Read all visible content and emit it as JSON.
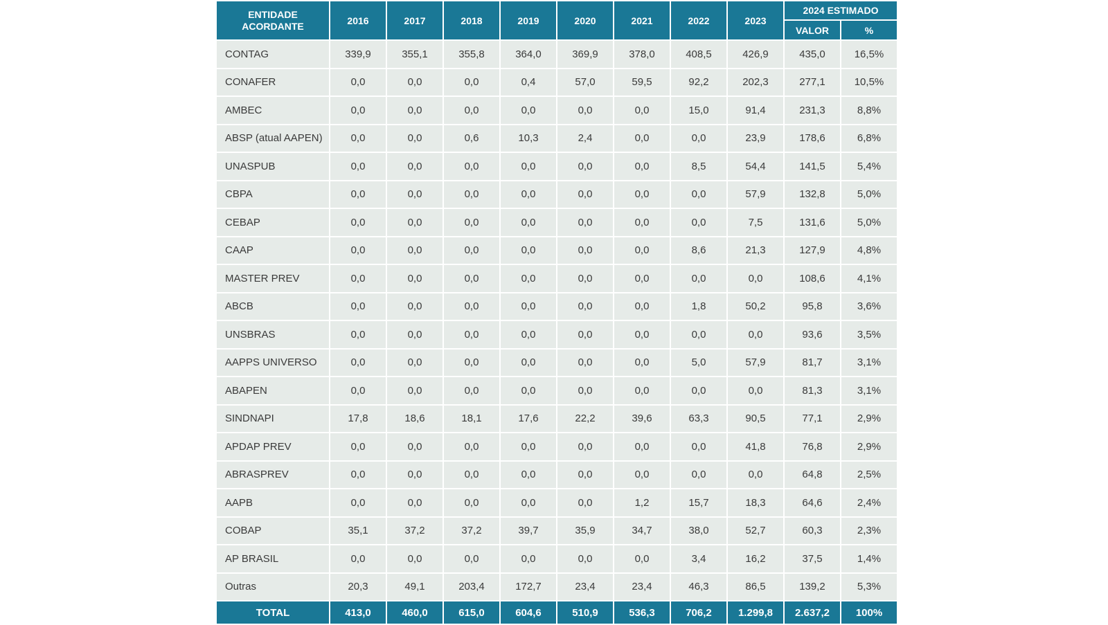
{
  "header": {
    "entity_line1": "ENTIDADE",
    "entity_line2": "ACORDANTE",
    "years": [
      "2016",
      "2017",
      "2018",
      "2019",
      "2020",
      "2021",
      "2022",
      "2023"
    ],
    "estimate_group": "2024 ESTIMADO",
    "estimate_value": "VALOR",
    "estimate_pct": "%"
  },
  "rows": [
    {
      "name": "CONTAG",
      "values": [
        "339,9",
        "355,1",
        "355,8",
        "364,0",
        "369,9",
        "378,0",
        "408,5",
        "426,9",
        "435,0",
        "16,5%"
      ]
    },
    {
      "name": "CONAFER",
      "values": [
        "0,0",
        "0,0",
        "0,0",
        "0,4",
        "57,0",
        "59,5",
        "92,2",
        "202,3",
        "277,1",
        "10,5%"
      ]
    },
    {
      "name": "AMBEC",
      "values": [
        "0,0",
        "0,0",
        "0,0",
        "0,0",
        "0,0",
        "0,0",
        "15,0",
        "91,4",
        "231,3",
        "8,8%"
      ]
    },
    {
      "name": "ABSP (atual AAPEN)",
      "values": [
        "0,0",
        "0,0",
        "0,6",
        "10,3",
        "2,4",
        "0,0",
        "0,0",
        "23,9",
        "178,6",
        "6,8%"
      ]
    },
    {
      "name": "UNASPUB",
      "values": [
        "0,0",
        "0,0",
        "0,0",
        "0,0",
        "0,0",
        "0,0",
        "8,5",
        "54,4",
        "141,5",
        "5,4%"
      ]
    },
    {
      "name": "CBPA",
      "values": [
        "0,0",
        "0,0",
        "0,0",
        "0,0",
        "0,0",
        "0,0",
        "0,0",
        "57,9",
        "132,8",
        "5,0%"
      ]
    },
    {
      "name": "CEBAP",
      "values": [
        "0,0",
        "0,0",
        "0,0",
        "0,0",
        "0,0",
        "0,0",
        "0,0",
        "7,5",
        "131,6",
        "5,0%"
      ]
    },
    {
      "name": "CAAP",
      "values": [
        "0,0",
        "0,0",
        "0,0",
        "0,0",
        "0,0",
        "0,0",
        "8,6",
        "21,3",
        "127,9",
        "4,8%"
      ]
    },
    {
      "name": "MASTER PREV",
      "values": [
        "0,0",
        "0,0",
        "0,0",
        "0,0",
        "0,0",
        "0,0",
        "0,0",
        "0,0",
        "108,6",
        "4,1%"
      ]
    },
    {
      "name": "ABCB",
      "values": [
        "0,0",
        "0,0",
        "0,0",
        "0,0",
        "0,0",
        "0,0",
        "1,8",
        "50,2",
        "95,8",
        "3,6%"
      ]
    },
    {
      "name": "UNSBRAS",
      "values": [
        "0,0",
        "0,0",
        "0,0",
        "0,0",
        "0,0",
        "0,0",
        "0,0",
        "0,0",
        "93,6",
        "3,5%"
      ]
    },
    {
      "name": "AAPPS UNIVERSO",
      "values": [
        "0,0",
        "0,0",
        "0,0",
        "0,0",
        "0,0",
        "0,0",
        "5,0",
        "57,9",
        "81,7",
        "3,1%"
      ]
    },
    {
      "name": "ABAPEN",
      "values": [
        "0,0",
        "0,0",
        "0,0",
        "0,0",
        "0,0",
        "0,0",
        "0,0",
        "0,0",
        "81,3",
        "3,1%"
      ]
    },
    {
      "name": "SINDNAPI",
      "values": [
        "17,8",
        "18,6",
        "18,1",
        "17,6",
        "22,2",
        "39,6",
        "63,3",
        "90,5",
        "77,1",
        "2,9%"
      ]
    },
    {
      "name": "APDAP PREV",
      "values": [
        "0,0",
        "0,0",
        "0,0",
        "0,0",
        "0,0",
        "0,0",
        "0,0",
        "41,8",
        "76,8",
        "2,9%"
      ]
    },
    {
      "name": "ABRASPREV",
      "values": [
        "0,0",
        "0,0",
        "0,0",
        "0,0",
        "0,0",
        "0,0",
        "0,0",
        "0,0",
        "64,8",
        "2,5%"
      ]
    },
    {
      "name": "AAPB",
      "values": [
        "0,0",
        "0,0",
        "0,0",
        "0,0",
        "0,0",
        "1,2",
        "15,7",
        "18,3",
        "64,6",
        "2,4%"
      ]
    },
    {
      "name": "COBAP",
      "values": [
        "35,1",
        "37,2",
        "37,2",
        "39,7",
        "35,9",
        "34,7",
        "38,0",
        "52,7",
        "60,3",
        "2,3%"
      ]
    },
    {
      "name": "AP BRASIL",
      "values": [
        "0,0",
        "0,0",
        "0,0",
        "0,0",
        "0,0",
        "0,0",
        "3,4",
        "16,2",
        "37,5",
        "1,4%"
      ]
    },
    {
      "name": "Outras",
      "values": [
        "20,3",
        "49,1",
        "203,4",
        "172,7",
        "23,4",
        "23,4",
        "46,3",
        "86,5",
        "139,2",
        "5,3%"
      ]
    }
  ],
  "total": {
    "label": "TOTAL",
    "values": [
      "413,0",
      "460,0",
      "615,0",
      "604,6",
      "510,9",
      "536,3",
      "706,2",
      "1.299,8",
      "2.637,2",
      "100%"
    ]
  }
}
